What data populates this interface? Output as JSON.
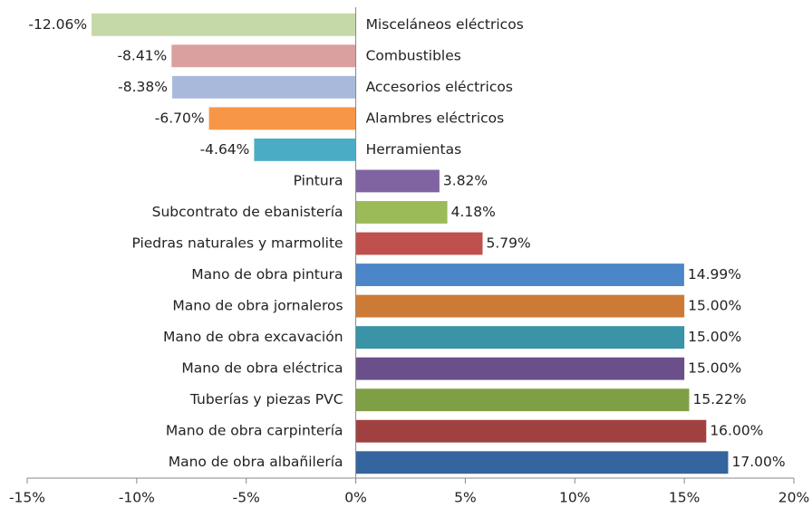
{
  "chart_data": {
    "type": "bar",
    "orientation": "horizontal",
    "categories": [
      "Misceláneos eléctricos",
      "Combustibles",
      "Accesorios eléctricos",
      "Alambres eléctricos",
      "Herramientas",
      "Pintura",
      "Subcontrato de ebanistería",
      "Piedras naturales y marmolite",
      "Mano de obra pintura",
      "Mano de obra jornaleros",
      "Mano de obra excavación",
      "Mano de obra eléctrica",
      "Tuberías y piezas PVC",
      "Mano de obra carpintería",
      "Mano de obra albañilería"
    ],
    "values": [
      -12.06,
      -8.41,
      -8.38,
      -6.7,
      -4.64,
      3.82,
      4.18,
      5.79,
      14.99,
      15.0,
      15.0,
      15.0,
      15.22,
      16.0,
      17.0
    ],
    "value_labels": [
      "-12.06%",
      "-8.41%",
      "-8.38%",
      "-6.70%",
      "-4.64%",
      "3.82%",
      "4.18%",
      "5.79%",
      "14.99%",
      "15.00%",
      "15.00%",
      "15.00%",
      "15.22%",
      "16.00%",
      "17.00%"
    ],
    "colors": [
      "#c5d9a8",
      "#d9a09f",
      "#a9b9dc",
      "#f79646",
      "#4bacc6",
      "#8064a2",
      "#9bbb59",
      "#c0504d",
      "#4a86c8",
      "#cc7a35",
      "#3a93a6",
      "#6a4f8a",
      "#7f9f45",
      "#a04040",
      "#35659e"
    ],
    "xlim": [
      -15,
      20
    ],
    "xticks": [
      {
        "value": -15,
        "label": "-15%"
      },
      {
        "value": -10,
        "label": "-10%"
      },
      {
        "value": -5,
        "label": "-5%"
      },
      {
        "value": 0,
        "label": "0%"
      },
      {
        "value": 5,
        "label": "5%"
      },
      {
        "value": 10,
        "label": "10%"
      },
      {
        "value": 15,
        "label": "15%"
      },
      {
        "value": 20,
        "label": "20%"
      }
    ]
  }
}
